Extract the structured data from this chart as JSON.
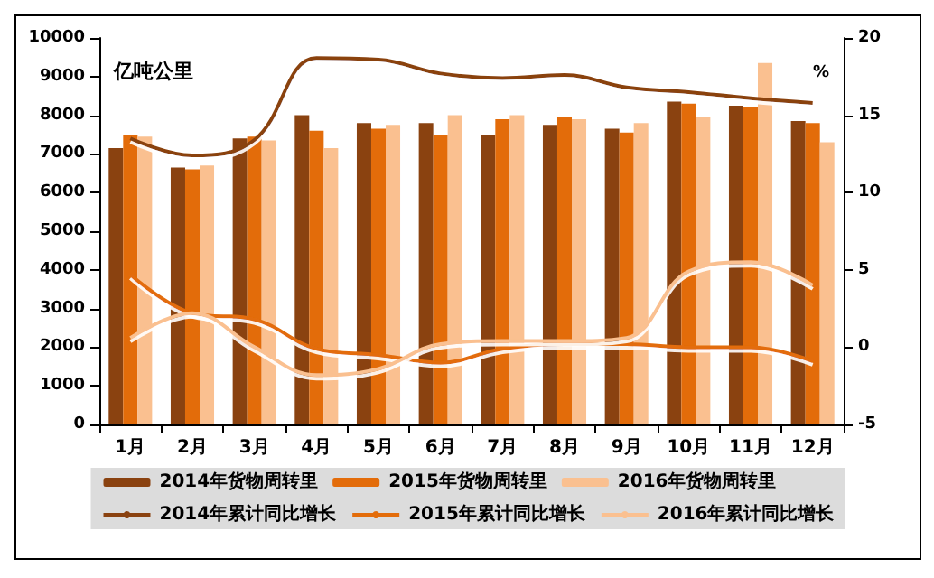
{
  "chart_data": {
    "type": "bar",
    "ylabel": "亿吨公里",
    "y2label": "%",
    "categories": [
      "1月",
      "2月",
      "3月",
      "4月",
      "5月",
      "6月",
      "7月",
      "8月",
      "9月",
      "10月",
      "11月",
      "12月"
    ],
    "series": [
      {
        "name": "2014年货物周转里",
        "color": "#8a4210",
        "values": [
          7150,
          6650,
          7400,
          8000,
          7800,
          7800,
          7500,
          7750,
          7650,
          8350,
          8250,
          7850
        ]
      },
      {
        "name": "2015年货物周转里",
        "color": "#e36c0a",
        "values": [
          7500,
          6600,
          7450,
          7600,
          7650,
          7500,
          7900,
          7950,
          7550,
          8300,
          8200,
          7800
        ]
      },
      {
        "name": "2016年货物周转里",
        "color": "#fac090",
        "values": [
          7450,
          6700,
          7350,
          7150,
          7750,
          8000,
          8000,
          7900,
          7800,
          7950,
          9350,
          7300
        ]
      },
      {
        "name": "2014年累计同比增长",
        "type": "line",
        "axis": "y2",
        "color": "#8a4210",
        "values": [
          13.5,
          12.4,
          13.4,
          18.7,
          18.6,
          17.7,
          17.4,
          17.6,
          16.8,
          16.5,
          16.1,
          15.8
        ]
      },
      {
        "name": "2015年累计同比增长",
        "type": "line",
        "axis": "y2",
        "color": "#e36c0a",
        "values": [
          4.7,
          2.2,
          1.8,
          -0.1,
          -0.5,
          -1.0,
          -0.1,
          0.2,
          0.2,
          0,
          0,
          -0.9
        ]
      },
      {
        "name": "2016年累计同比增长",
        "type": "line",
        "axis": "y2",
        "color": "#fac090",
        "values": [
          0.6,
          2.2,
          0,
          -1.8,
          -1.4,
          0.2,
          0.4,
          0.4,
          0.6,
          4.9,
          5.5,
          4.0
        ]
      }
    ],
    "ylim": [
      0,
      10000
    ],
    "yticks": [
      0,
      1000,
      2000,
      3000,
      4000,
      5000,
      6000,
      7000,
      8000,
      9000,
      10000
    ],
    "y2lim": [
      -5,
      20
    ],
    "y2ticks": [
      -5,
      0,
      5,
      10,
      15,
      20
    ],
    "grid": false,
    "legend": "bottom",
    "marker": "none",
    "line_style": "solid"
  }
}
